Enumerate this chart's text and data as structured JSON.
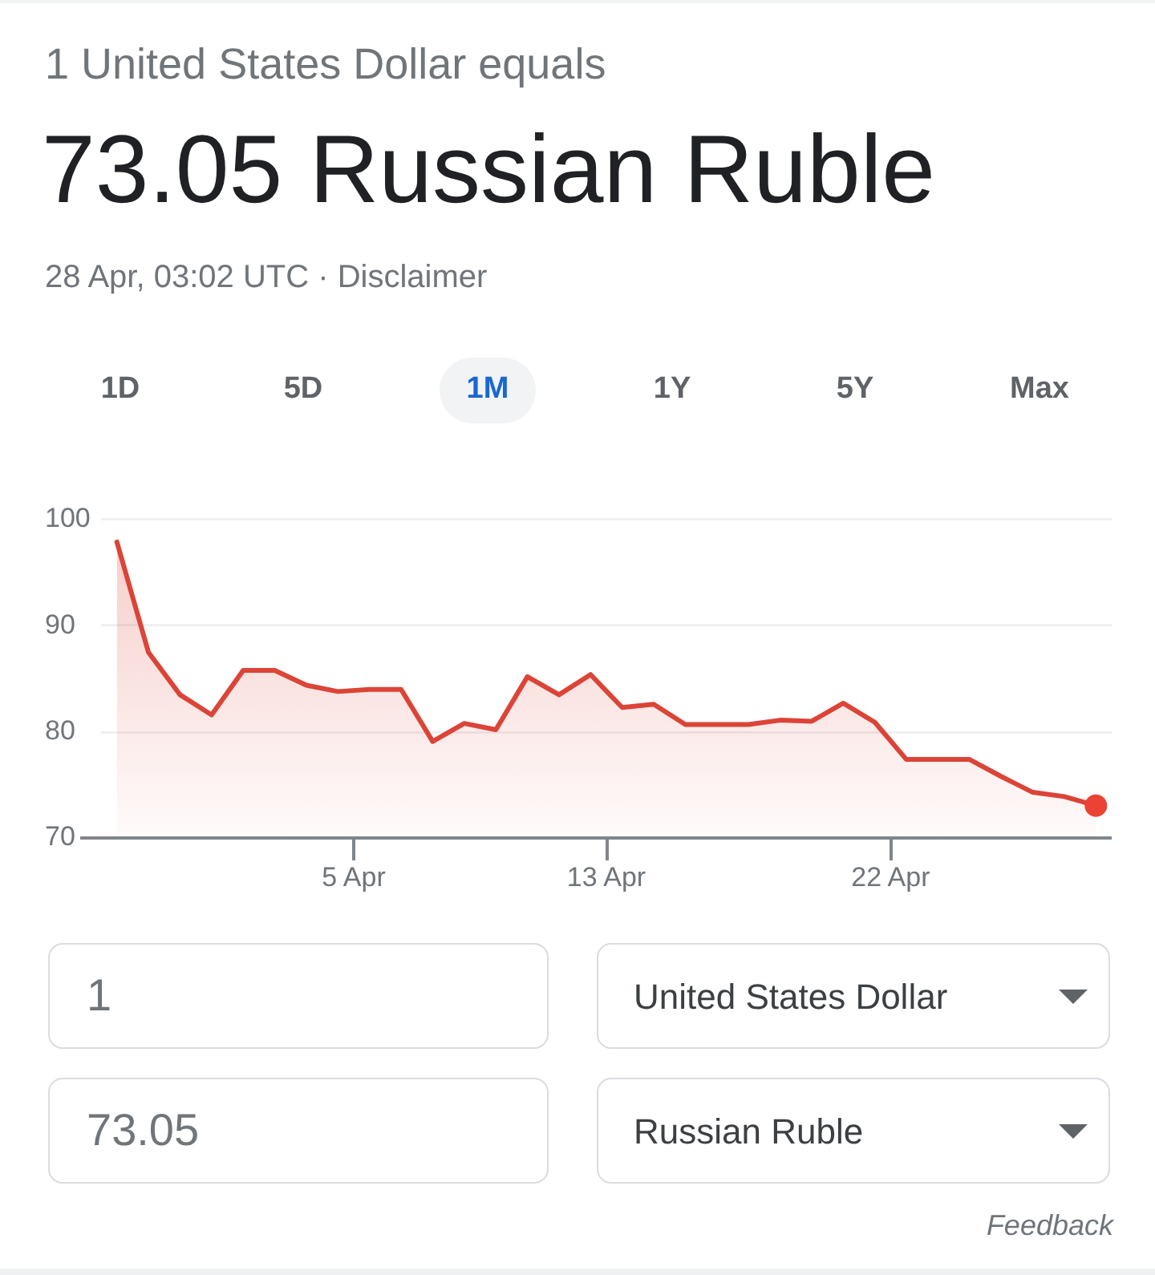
{
  "chart_data": {
    "type": "area",
    "title": "1 United States Dollar equals",
    "subtitle": "73.05 Russian Ruble",
    "x": [
      "--03-28T12:00",
      "--03-29T12:00",
      "--03-30T12:00",
      "--03-31T12:00",
      "--04-01T12:00",
      "--04-02T12:00",
      "--04-03T12:00",
      "--04-04T12:00",
      "--04-05T12:00",
      "--04-06T12:00",
      "--04-07T12:00",
      "--04-08T12:00",
      "--04-09T12:00",
      "--04-10T12:00",
      "--04-11T12:00",
      "--04-12T12:00",
      "--04-13T12:00",
      "--04-14T12:00",
      "--04-15T12:00",
      "--04-16T12:00",
      "--04-17T12:00",
      "--04-18T12:00",
      "--04-19T12:00",
      "--04-20T12:00",
      "--04-21T12:00",
      "--04-22T12:00",
      "--04-23T12:00",
      "--04-24T12:00",
      "--04-25T12:00",
      "--04-26T12:00",
      "--04-27T12:00",
      "--04-28T12:00"
    ],
    "series": [
      {
        "color": "#db4437",
        "values": [
          97.9,
          87.5,
          83.5,
          81.6,
          85.8,
          85.8,
          84.4,
          83.8,
          84.0,
          84.0,
          79.1,
          80.8,
          80.2,
          85.2,
          83.5,
          85.4,
          82.3,
          82.6,
          80.7,
          80.7,
          80.7,
          81.1,
          81.0,
          82.7,
          80.9,
          77.4,
          77.4,
          77.4,
          75.8,
          74.3,
          73.9,
          73.05
        ]
      },
      {
        "type": "scatter",
        "x": [
          "--04-28T12:00"
        ],
        "color": "#ea4335",
        "marker": "circle",
        "values": [
          73.05
        ]
      }
    ],
    "xlim": [
      "--03-28",
      "--04-29"
    ],
    "xticks": [
      {
        "value": "--04-05",
        "label": "5 Apr"
      },
      {
        "value": "--04-13",
        "label": "13 Apr"
      },
      {
        "value": "--04-22",
        "label": "22 Apr"
      }
    ],
    "ylim": [
      70,
      100
    ],
    "yticks": [
      70,
      80,
      90,
      100
    ],
    "grid": "y",
    "marker": "none",
    "annotations": [
      "28 Apr, 03:02 UTC · Disclaimer",
      "1D",
      "5D",
      "1M",
      "1Y",
      "5Y",
      "Max",
      "1",
      "United States Dollar",
      "73.05",
      "Russian Ruble",
      "Feedback"
    ]
  }
}
